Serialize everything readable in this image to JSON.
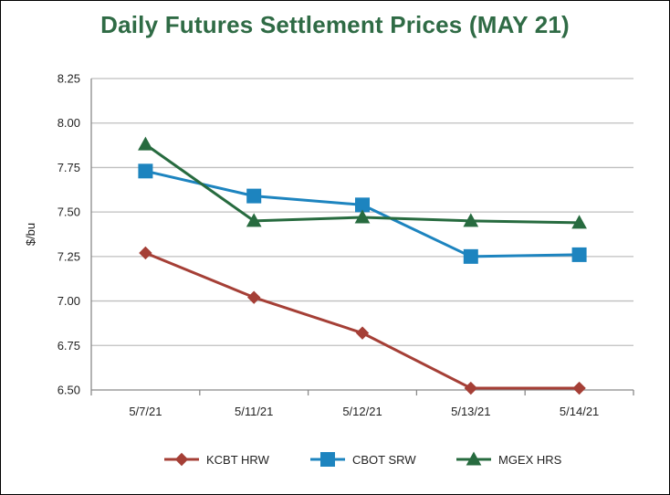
{
  "chart_data": {
    "type": "line",
    "title": "Daily Futures Settlement Prices (MAY 21)",
    "ylabel": "$/bu",
    "xlabel": "",
    "categories": [
      "5/7/21",
      "5/11/21",
      "5/12/21",
      "5/13/21",
      "5/14/21"
    ],
    "ylim": [
      6.5,
      8.25
    ],
    "yticks": [
      "6.50",
      "6.75",
      "7.00",
      "7.25",
      "7.50",
      "7.75",
      "8.00",
      "8.25"
    ],
    "grid": true,
    "legend_position": "bottom",
    "series": [
      {
        "name": "KCBT HRW",
        "color": "#a53f36",
        "marker": "diamond",
        "values": [
          7.27,
          7.02,
          6.82,
          6.51,
          6.51
        ]
      },
      {
        "name": "CBOT SRW",
        "color": "#1d84bf",
        "marker": "square",
        "values": [
          7.73,
          7.59,
          7.54,
          7.25,
          7.26
        ]
      },
      {
        "name": "MGEX HRS",
        "color": "#276b3f",
        "marker": "triangle",
        "values": [
          7.88,
          7.45,
          7.47,
          7.45,
          7.44
        ]
      }
    ]
  }
}
